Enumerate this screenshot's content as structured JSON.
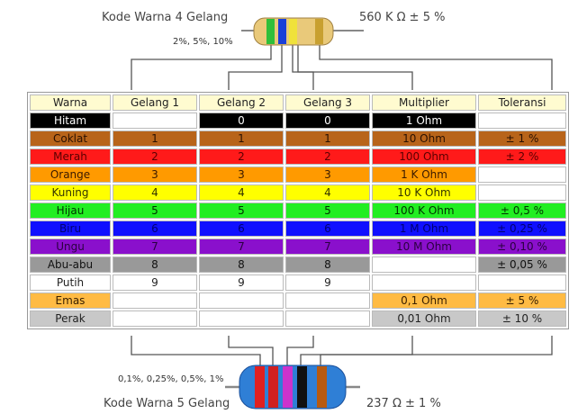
{
  "top": {
    "title": "Kode Warna 4 Gelang",
    "tolerance_note": "2%, 5%, 10%",
    "value": "560 K Ω  ± 5 %",
    "body_color": "#e9c97a",
    "bands": [
      "#2fbf3a",
      "#1a3fd8",
      "#f0e23a",
      "#c8a030"
    ]
  },
  "bottom": {
    "title": "Kode Warna 5 Gelang",
    "tolerance_note": "0,1%, 0,25%, 0,5%, 1%",
    "value": "237 Ω  ± 1 %",
    "body_color": "#2f7fd6",
    "bands": [
      "#e02020",
      "#d02020",
      "#cc33cc",
      "#111111",
      "#b85a10"
    ]
  },
  "table": {
    "headers": [
      "Warna",
      "Gelang 1",
      "Gelang 2",
      "Gelang 3",
      "Multiplier",
      "Toleransi"
    ],
    "rows": [
      {
        "cells": [
          "Hitam",
          "",
          "0",
          "0",
          "1 Ohm",
          ""
        ],
        "bg": "#000000",
        "fg": "#ffffff",
        "blank_cols": [
          1,
          5
        ]
      },
      {
        "cells": [
          "Coklat",
          "1",
          "1",
          "1",
          "10 Ohm",
          "± 1 %"
        ],
        "bg": "#b8641a",
        "fg": "#2a1000",
        "blank_cols": []
      },
      {
        "cells": [
          "Merah",
          "2",
          "2",
          "2",
          "100 Ohm",
          "± 2 %"
        ],
        "bg": "#ff1a1a",
        "fg": "#5a0000",
        "blank_cols": []
      },
      {
        "cells": [
          "Orange",
          "3",
          "3",
          "3",
          "1 K Ohm",
          ""
        ],
        "bg": "#ff9a00",
        "fg": "#3a1a00",
        "blank_cols": [
          5
        ]
      },
      {
        "cells": [
          "Kuning",
          "4",
          "4",
          "4",
          "10 K Ohm",
          ""
        ],
        "bg": "#ffff00",
        "fg": "#333300",
        "blank_cols": [
          5
        ]
      },
      {
        "cells": [
          "Hijau",
          "5",
          "5",
          "5",
          "100 K Ohm",
          "± 0,5 %"
        ],
        "bg": "#22ee22",
        "fg": "#003300",
        "blank_cols": []
      },
      {
        "cells": [
          "Biru",
          "6",
          "6",
          "6",
          "1 M Ohm",
          "± 0,25 %"
        ],
        "bg": "#1010ff",
        "fg": "#000070",
        "blank_cols": []
      },
      {
        "cells": [
          "Ungu",
          "7",
          "7",
          "7",
          "10 M Ohm",
          "± 0,10 %"
        ],
        "bg": "#8a10cc",
        "fg": "#2a0040",
        "blank_cols": []
      },
      {
        "cells": [
          "Abu-abu",
          "8",
          "8",
          "8",
          "",
          "± 0,05 %"
        ],
        "bg": "#999999",
        "fg": "#111111",
        "blank_cols": [
          4
        ]
      },
      {
        "cells": [
          "Putih",
          "9",
          "9",
          "9",
          "",
          ""
        ],
        "bg": "#ffffff",
        "fg": "#222222",
        "blank_cols": [
          4,
          5
        ]
      },
      {
        "cells": [
          "Emas",
          "",
          "",
          "",
          "0,1 Ohm",
          "± 5 %"
        ],
        "bg": "#ffbb44",
        "fg": "#3a2000",
        "blank_cols": [
          1,
          2,
          3
        ]
      },
      {
        "cells": [
          "Perak",
          "",
          "",
          "",
          "0,01 Ohm",
          "± 10 %"
        ],
        "bg": "#c8c8c8",
        "fg": "#222222",
        "blank_cols": [
          1,
          2,
          3
        ]
      }
    ]
  }
}
